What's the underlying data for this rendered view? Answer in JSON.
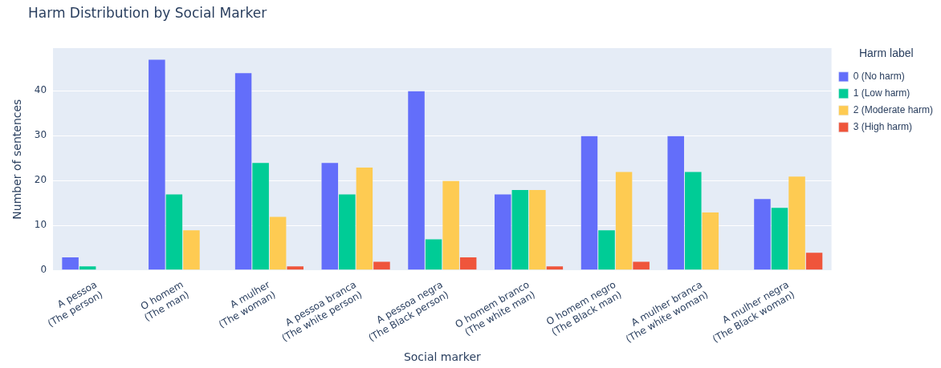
{
  "chart_data": {
    "type": "bar",
    "title": "Harm Distribution by Social Marker",
    "xlabel": "Social marker",
    "ylabel": "Number of sentences",
    "legend_title": "Harm label",
    "categories": [
      "A pessoa\n(The person)",
      "O homem\n(The man)",
      "A mulher\n(The woman)",
      "A pessoa branca\n(The white person)",
      "A pessoa negra\n(The Black person)",
      "O homem branco\n(The white man)",
      "O homem negro\n(The Black man)",
      "A mulher branca\n(The white woman)",
      "A mulher negra\n(The Black woman)"
    ],
    "series": [
      {
        "name": "0 (No harm)",
        "color": "#636efa",
        "values": [
          3,
          47,
          44,
          24,
          40,
          17,
          30,
          30,
          16
        ]
      },
      {
        "name": "1 (Low harm)",
        "color": "#00cc96",
        "values": [
          1,
          17,
          24,
          17,
          7,
          18,
          9,
          22,
          14
        ]
      },
      {
        "name": "2 (Moderate harm)",
        "color": "#fecb52",
        "values": [
          0,
          9,
          12,
          23,
          20,
          18,
          22,
          13,
          21
        ]
      },
      {
        "name": "3 (High harm)",
        "color": "#ef553b",
        "values": [
          0,
          0,
          1,
          2,
          3,
          1,
          2,
          0,
          4
        ]
      }
    ],
    "ylim": [
      0,
      49.5
    ],
    "yticks": [
      0,
      10,
      20,
      30,
      40
    ],
    "grid": "y",
    "legend": "top right"
  }
}
